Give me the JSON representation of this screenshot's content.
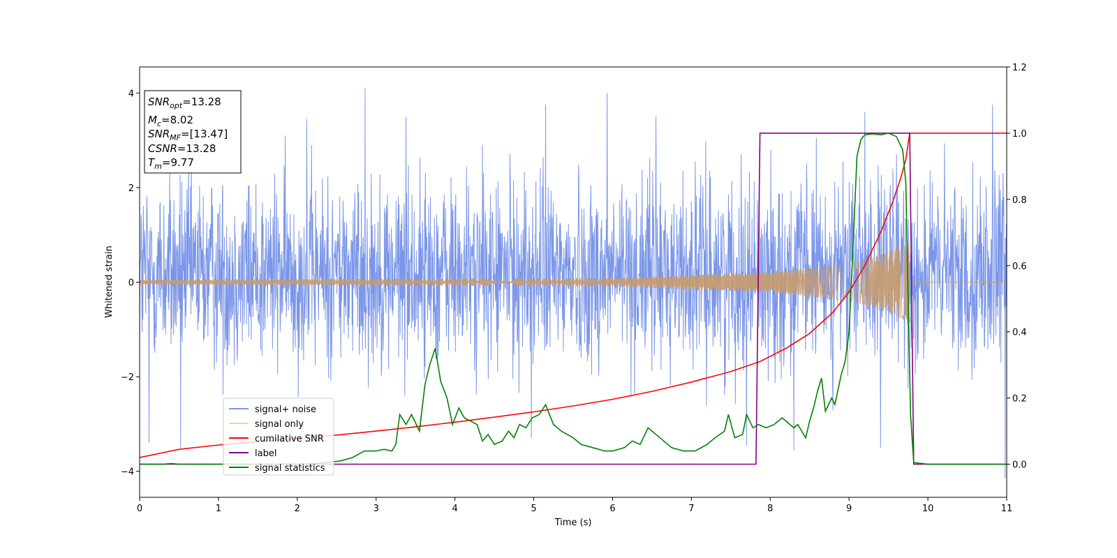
{
  "chart_data": {
    "type": "line",
    "xlabel": "Time (s)",
    "ylabel": "Whitened strain",
    "xlim": [
      0,
      11
    ],
    "ylim_left": [
      -4.55,
      4.55
    ],
    "ylim_right": [
      -0.1,
      1.2
    ],
    "xticks": [
      "0",
      "1",
      "2",
      "3",
      "4",
      "5",
      "6",
      "7",
      "8",
      "9",
      "10",
      "11"
    ],
    "yticks_left": [
      "4",
      "2",
      "0",
      "−2",
      "−4"
    ],
    "yticks_right": [
      "1.2",
      "1.0",
      "0.8",
      "0.6",
      "0.4",
      "0.2",
      "0.0"
    ],
    "info_box": {
      "snr_opt": {
        "base": "SNR",
        "sub": "opt",
        "value": "=13.28"
      },
      "mc": {
        "base": "M",
        "sub": "c",
        "value": "=8.02"
      },
      "snr_mf": {
        "base": "SNR",
        "sub": "MF",
        "value": "=[13.47]"
      },
      "csnr": {
        "base": "CSNR",
        "value": "=13.28"
      },
      "tm": {
        "base": "T",
        "sub": "m",
        "value": "=9.77"
      }
    },
    "legend": {
      "placement": "lower-left",
      "entries": [
        {
          "label": "signal+ noise",
          "color": "#7b96e8"
        },
        {
          "label": "signal only",
          "color": "#fdd17c"
        },
        {
          "label": "cumilative SNR",
          "color": "#ff0000"
        },
        {
          "label": "label",
          "color": "#800080"
        },
        {
          "label": "signal statistics",
          "color": "#008000"
        }
      ]
    },
    "series": [
      {
        "name": "signal+ noise",
        "axis": "left",
        "color": "#7b96e8",
        "kind": "noise",
        "x_range": [
          0,
          11
        ],
        "typical_amplitude": [
          -1.7,
          2.1
        ],
        "peak_values": [
          [
            2.86,
            4.1
          ],
          [
            5.93,
            4.0
          ],
          [
            2.12,
            3.45
          ],
          [
            3.38,
            3.5
          ],
          [
            5.15,
            3.75
          ],
          [
            9.2,
            3.6
          ],
          [
            10.82,
            3.75
          ],
          [
            6.55,
            3.5
          ],
          [
            0.52,
            -3.5
          ],
          [
            8.3,
            -3.55
          ],
          [
            10.98,
            -4.15
          ],
          [
            9.4,
            -3.5
          ],
          [
            4.97,
            -3.3
          ],
          [
            7.7,
            -3.45
          ],
          [
            0.12,
            -3.4
          ]
        ]
      },
      {
        "name": "signal only",
        "axis": "left",
        "color": "#c89b6d",
        "kind": "chirp",
        "x_range": [
          0,
          9.77
        ],
        "envelope": [
          [
            0,
            0.05
          ],
          [
            6,
            0.09
          ],
          [
            8,
            0.22
          ],
          [
            9,
            0.4
          ],
          [
            9.5,
            0.65
          ],
          [
            9.77,
            0.85
          ]
        ]
      },
      {
        "name": "cumilative SNR",
        "axis": "right",
        "color": "#ff0000",
        "points": [
          [
            0,
            0.02
          ],
          [
            0.5,
            0.045
          ],
          [
            1,
            0.058
          ],
          [
            1.5,
            0.068
          ],
          [
            2,
            0.078
          ],
          [
            2.5,
            0.088
          ],
          [
            3,
            0.1
          ],
          [
            3.5,
            0.113
          ],
          [
            4,
            0.127
          ],
          [
            4.5,
            0.142
          ],
          [
            5,
            0.158
          ],
          [
            5.5,
            0.176
          ],
          [
            6,
            0.196
          ],
          [
            6.5,
            0.22
          ],
          [
            7,
            0.248
          ],
          [
            7.5,
            0.28
          ],
          [
            7.87,
            0.31
          ],
          [
            8.2,
            0.35
          ],
          [
            8.5,
            0.395
          ],
          [
            8.8,
            0.46
          ],
          [
            9,
            0.52
          ],
          [
            9.2,
            0.6
          ],
          [
            9.4,
            0.7
          ],
          [
            9.55,
            0.79
          ],
          [
            9.65,
            0.86
          ],
          [
            9.72,
            0.92
          ],
          [
            9.75,
            0.97
          ],
          [
            9.77,
            1.0
          ],
          [
            11,
            1.0
          ]
        ]
      },
      {
        "name": "label",
        "axis": "right",
        "color": "#800080",
        "points": [
          [
            0,
            0
          ],
          [
            7.82,
            0
          ],
          [
            7.87,
            1.0
          ],
          [
            9.77,
            1.0
          ],
          [
            9.82,
            0
          ],
          [
            11,
            0
          ]
        ]
      },
      {
        "name": "signal statistics",
        "axis": "right",
        "color": "#008000",
        "points": [
          [
            0,
            0
          ],
          [
            0.3,
            0
          ],
          [
            0.4,
            0.002
          ],
          [
            0.5,
            0
          ],
          [
            1.0,
            0
          ],
          [
            2.0,
            0
          ],
          [
            2.3,
            0.003
          ],
          [
            2.55,
            0.01
          ],
          [
            2.7,
            0.02
          ],
          [
            2.85,
            0.04
          ],
          [
            3.0,
            0.04
          ],
          [
            3.1,
            0.045
          ],
          [
            3.2,
            0.04
          ],
          [
            3.25,
            0.06
          ],
          [
            3.3,
            0.15
          ],
          [
            3.38,
            0.12
          ],
          [
            3.45,
            0.15
          ],
          [
            3.55,
            0.1
          ],
          [
            3.62,
            0.24
          ],
          [
            3.68,
            0.3
          ],
          [
            3.75,
            0.35
          ],
          [
            3.82,
            0.25
          ],
          [
            3.9,
            0.2
          ],
          [
            3.97,
            0.12
          ],
          [
            4.05,
            0.17
          ],
          [
            4.12,
            0.14
          ],
          [
            4.2,
            0.13
          ],
          [
            4.28,
            0.12
          ],
          [
            4.35,
            0.07
          ],
          [
            4.42,
            0.09
          ],
          [
            4.5,
            0.06
          ],
          [
            4.6,
            0.07
          ],
          [
            4.68,
            0.1
          ],
          [
            4.75,
            0.08
          ],
          [
            4.82,
            0.12
          ],
          [
            4.9,
            0.11
          ],
          [
            4.98,
            0.14
          ],
          [
            5.07,
            0.15
          ],
          [
            5.15,
            0.18
          ],
          [
            5.2,
            0.15
          ],
          [
            5.25,
            0.12
          ],
          [
            5.35,
            0.1
          ],
          [
            5.5,
            0.08
          ],
          [
            5.6,
            0.06
          ],
          [
            5.75,
            0.05
          ],
          [
            5.9,
            0.04
          ],
          [
            6.0,
            0.04
          ],
          [
            6.15,
            0.05
          ],
          [
            6.25,
            0.07
          ],
          [
            6.35,
            0.06
          ],
          [
            6.45,
            0.11
          ],
          [
            6.55,
            0.09
          ],
          [
            6.65,
            0.07
          ],
          [
            6.75,
            0.05
          ],
          [
            6.9,
            0.04
          ],
          [
            7.05,
            0.04
          ],
          [
            7.2,
            0.06
          ],
          [
            7.3,
            0.08
          ],
          [
            7.42,
            0.1
          ],
          [
            7.47,
            0.15
          ],
          [
            7.55,
            0.08
          ],
          [
            7.65,
            0.09
          ],
          [
            7.7,
            0.15
          ],
          [
            7.78,
            0.11
          ],
          [
            7.85,
            0.12
          ],
          [
            7.95,
            0.11
          ],
          [
            8.05,
            0.12
          ],
          [
            8.15,
            0.14
          ],
          [
            8.2,
            0.13
          ],
          [
            8.3,
            0.11
          ],
          [
            8.35,
            0.12
          ],
          [
            8.4,
            0.1
          ],
          [
            8.45,
            0.08
          ],
          [
            8.5,
            0.13
          ],
          [
            8.55,
            0.17
          ],
          [
            8.6,
            0.22
          ],
          [
            8.65,
            0.26
          ],
          [
            8.7,
            0.16
          ],
          [
            8.78,
            0.2
          ],
          [
            8.82,
            0.18
          ],
          [
            8.9,
            0.27
          ],
          [
            8.95,
            0.31
          ],
          [
            9.0,
            0.4
          ],
          [
            9.05,
            0.65
          ],
          [
            9.1,
            0.93
          ],
          [
            9.15,
            0.98
          ],
          [
            9.2,
            0.995
          ],
          [
            9.3,
            0.998
          ],
          [
            9.4,
            0.995
          ],
          [
            9.5,
            1.0
          ],
          [
            9.6,
            0.99
          ],
          [
            9.68,
            0.95
          ],
          [
            9.72,
            0.85
          ],
          [
            9.75,
            0.5
          ],
          [
            9.78,
            0.15
          ],
          [
            9.82,
            0.005
          ],
          [
            10,
            0
          ],
          [
            11,
            0
          ]
        ]
      }
    ]
  }
}
